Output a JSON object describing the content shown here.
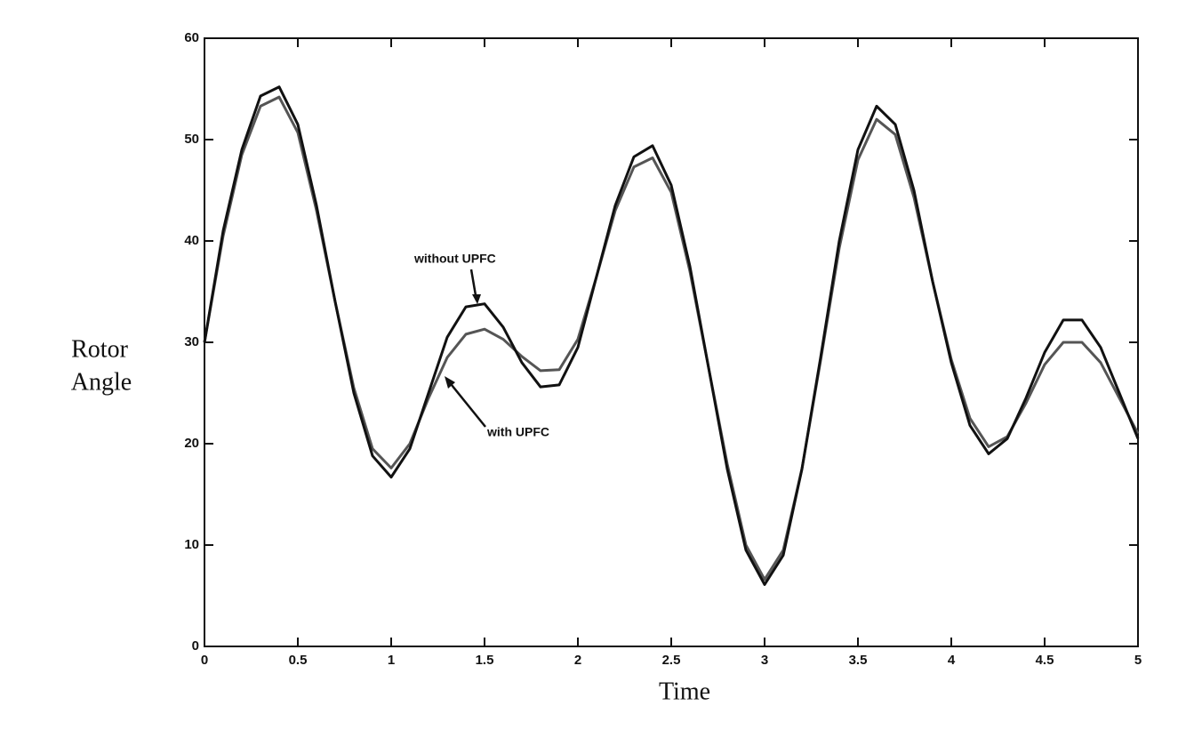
{
  "chart_data": {
    "type": "line",
    "xlabel": "Time",
    "ylabel": [
      "Rotor",
      "Angle"
    ],
    "annotations": [
      "without UPFC",
      "with UPFC"
    ],
    "x": [
      0,
      0.1,
      0.2,
      0.3,
      0.4,
      0.5,
      0.6,
      0.7,
      0.8,
      0.9,
      1.0,
      1.1,
      1.2,
      1.3,
      1.4,
      1.5,
      1.6,
      1.7,
      1.8,
      1.9,
      2.0,
      2.1,
      2.2,
      2.3,
      2.4,
      2.5,
      2.6,
      2.7,
      2.8,
      2.9,
      3.0,
      3.1,
      3.2,
      3.3,
      3.4,
      3.5,
      3.6,
      3.7,
      3.8,
      3.9,
      4.0,
      4.1,
      4.2,
      4.3,
      4.4,
      4.5,
      4.6,
      4.7,
      4.8,
      4.9,
      5.0
    ],
    "series": [
      {
        "name": "without UPFC",
        "color": "#111111",
        "values": [
          30,
          41,
          49,
          54.3,
          55.2,
          51.5,
          43.5,
          34,
          25,
          18.8,
          16.7,
          19.5,
          25,
          30.5,
          33.5,
          33.8,
          31.5,
          28,
          25.6,
          25.8,
          29.5,
          36.5,
          43.5,
          48.3,
          49.4,
          45.5,
          37.5,
          27.5,
          17.5,
          9.5,
          6.1,
          9,
          17.5,
          28.5,
          40,
          49,
          53.3,
          51.5,
          45,
          36,
          28,
          21.8,
          19,
          20.5,
          24.5,
          29,
          32.2,
          32.2,
          29.5,
          25,
          20.5
        ]
      },
      {
        "name": "with UPFC",
        "color": "#555555",
        "values": [
          30,
          40.5,
          48.5,
          53.3,
          54.2,
          50.7,
          43,
          34,
          25.5,
          19.5,
          17.6,
          20,
          24.5,
          28.5,
          30.8,
          31.3,
          30.3,
          28.6,
          27.2,
          27.3,
          30.3,
          36.5,
          43,
          47.3,
          48.2,
          44.8,
          37,
          27.5,
          18,
          10,
          6.6,
          9.5,
          17.5,
          28.2,
          39.3,
          48,
          52,
          50.5,
          44.3,
          36,
          28.3,
          22.5,
          19.7,
          20.7,
          24,
          27.8,
          30,
          30,
          28,
          24.5,
          21
        ]
      }
    ],
    "xlim": [
      0,
      5
    ],
    "xticks": [
      0,
      0.5,
      1,
      1.5,
      2,
      2.5,
      3,
      3.5,
      4,
      4.5,
      5
    ],
    "ylim": [
      0,
      60
    ],
    "yticks": [
      0,
      10,
      20,
      30,
      40,
      50,
      60
    ],
    "grid": false
  }
}
